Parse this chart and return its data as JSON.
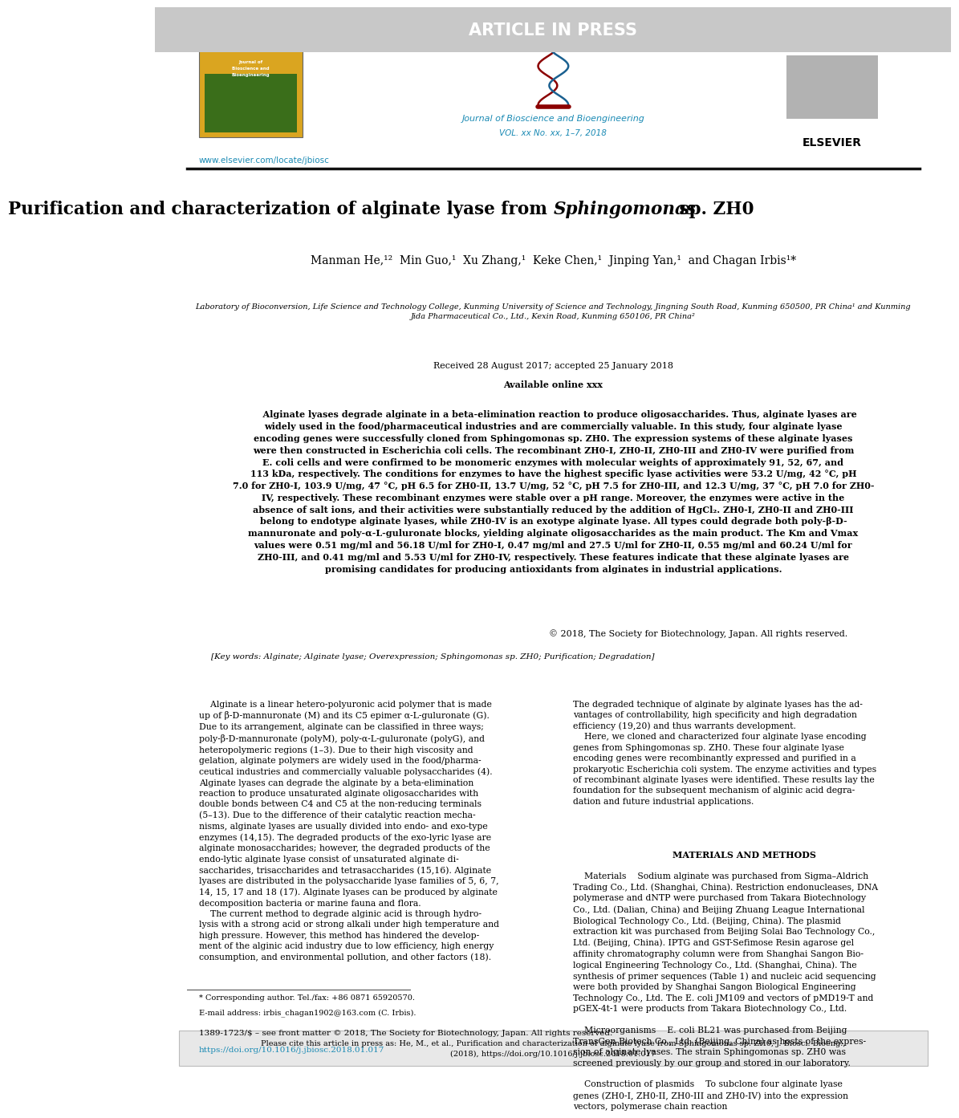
{
  "background_color": "#ffffff",
  "header_bar_color": "#c8c8c8",
  "header_bar_text": "ARTICLE IN PRESS",
  "header_bar_text_color": "#ffffff",
  "journal_name": "Journal of Bioscience and Bioengineering",
  "journal_volume": "VOL. xx No. xx, 1–7, 2018",
  "journal_name_color": "#1a8ab4",
  "url_text": "www.elsevier.com/locate/jbiosc",
  "url_color": "#1a8ab4",
  "title_text": "Purification and characterization of alginate lyase from Sphingomonas sp. ZH0",
  "authors_text": "Manman He,¹²  Min Guo,¹  Xu Zhang,¹  Keke Chen,¹  Jinping Yan,¹  and Chagan Irbis¹*",
  "affiliation_text": "Laboratory of Bioconversion, Life Science and Technology College, Kunming University of Science and Technology, Jingning South Road, Kunming 650500, PR China¹ and Kunming\nJida Pharmaceutical Co., Ltd., Kexin Road, Kunming 650106, PR China²",
  "received_text": "Received 28 August 2017; accepted 25 January 2018",
  "available_text": "Available online xxx",
  "abstract_text": "    Alginate lyases degrade alginate in a beta-elimination reaction to produce oligosaccharides. Thus, alginate lyases are\nwidely used in the food/pharmaceutical industries and are commercially valuable. In this study, four alginate lyase\nencoding genes were successfully cloned from Sphingomonas sp. ZH0. The expression systems of these alginate lyases\nwere then constructed in Escherichia coli cells. The recombinant ZH0-I, ZH0-II, ZH0-III and ZH0-IV were purified from\nE. coli cells and were confirmed to be monomeric enzymes with molecular weights of approximately 91, 52, 67, and\n113 kDa, respectively. The conditions for enzymes to have the highest specific lyase activities were 53.2 U/mg, 42 °C, pH\n7.0 for ZH0-I, 103.9 U/mg, 47 °C, pH 6.5 for ZH0-II, 13.7 U/mg, 52 °C, pH 7.5 for ZH0-III, and 12.3 U/mg, 37 °C, pH 7.0 for ZH0-\nIV, respectively. These recombinant enzymes were stable over a pH range. Moreover, the enzymes were active in the\nabsence of salt ions, and their activities were substantially reduced by the addition of HgCl₂. ZH0-I, ZH0-II and ZH0-III\nbelong to endotype alginate lyases, while ZH0-IV is an exotype alginate lyase. All types could degrade both poly-β-D-\nmannuronate and poly-α-L-guluronate blocks, yielding alginate oligosaccharides as the main product. The Km and Vmax\nvalues were 0.51 mg/ml and 56.18 U/ml for ZH0-I, 0.47 mg/ml and 27.5 U/ml for ZH0-II, 0.55 mg/ml and 60.24 U/ml for\nZH0-III, and 0.41 mg/ml and 5.53 U/ml for ZH0-IV, respectively. These features indicate that these alginate lyases are\npromising candidates for producing antioxidants from alginates in industrial applications.",
  "copyright_text": "© 2018, The Society for Biotechnology, Japan. All rights reserved.",
  "keywords_text": "[Key words: Alginate; Alginate lyase; Overexpression; Sphingomonas sp. ZH0; Purification; Degradation]",
  "col1_text": "    Alginate is a linear hetero-polyuronic acid polymer that is made\nup of β-D-mannuronate (M) and its C5 epimer α-L-guluronate (G).\nDue to its arrangement, alginate can be classified in three ways;\npoly-β-D-mannuronate (polyM), poly-α-L-guluronate (polyG), and\nheteropolymeric regions (1–3). Due to their high viscosity and\ngelation, alginate polymers are widely used in the food/pharma-\nceutical industries and commercially valuable polysaccharides (4).\nAlginate lyases can degrade the alginate by a beta-elimination\nreaction to produce unsaturated alginate oligosaccharides with\ndouble bonds between C4 and C5 at the non-reducing terminals\n(5–13). Due to the difference of their catalytic reaction mecha-\nnisms, alginate lyases are usually divided into endo- and exo-type\nenzymes (14,15). The degraded products of the exo-lyric lyase are\nalginate monosaccharides; however, the degraded products of the\nendo-lytic alginate lyase consist of unsaturated alginate di-\nsaccharides, trisaccharides and tetrasaccharides (15,16). Alginate\nlyases are distributed in the polysaccharide lyase families of 5, 6, 7,\n14, 15, 17 and 18 (17). Alginate lyases can be produced by alginate\ndecomposition bacteria or marine fauna and flora.\n    The current method to degrade alginic acid is through hydro-\nlysis with a strong acid or strong alkali under high temperature and\nhigh pressure. However, this method has hindered the develop-\nment of the alginic acid industry due to low efficiency, high energy\nconsumption, and environmental pollution, and other factors (18).",
  "col2_text": "The degraded technique of alginate by alginate lyases has the ad-\nvantages of controllability, high specificity and high degradation\nefficiency (19,20) and thus warrants development.\n    Here, we cloned and characterized four alginate lyase encoding\ngenes from Sphingomonas sp. ZH0. These four alginate lyase\nencoding genes were recombinantly expressed and purified in a\nprokaryotic Escherichia coli system. The enzyme activities and types\nof recombinant alginate lyases were identified. These results lay the\nfoundation for the subsequent mechanism of alginic acid degra-\ndation and future industrial applications.",
  "mm_title": "MATERIALS AND METHODS",
  "col2_materials": "    Materials    Sodium alginate was purchased from Sigma–Aldrich\nTrading Co., Ltd. (Shanghai, China). Restriction endonucleases, DNA\npolymerase and dNTP were purchased from Takara Biotechnology\nCo., Ltd. (Dalian, China) and Beijing Zhuang League International\nBiological Technology Co., Ltd. (Beijing, China). The plasmid\nextraction kit was purchased from Beijing Solai Bao Technology Co.,\nLtd. (Beijing, China). IPTG and GST-Sefimose Resin agarose gel\naffinity chromatography column were from Shanghai Sangon Bio-\nlogical Engineering Technology Co., Ltd. (Shanghai, China). The\nsynthesis of primer sequences (Table 1) and nucleic acid sequencing\nwere both provided by Shanghai Sangon Biological Engineering\nTechnology Co., Ltd. The E. coli JM109 and vectors of pMD19-T and\npGEX-4t-1 were products from Takara Biotechnology Co., Ltd.\n\n    Microorganisms    E. coli BL21 was purchased from Beijing\nTransGen Biotech Co., Ltd. (Beijing, China) as hosts of the expres-\nsion of alginate lyases. The strain Sphingomonas sp. ZH0 was\nscreened previously by our group and stored in our laboratory.\n\n    Construction of plasmids    To subclone four alginate lyase\ngenes (ZH0-I, ZH0-II, ZH0-III and ZH0-IV) into the expression\nvectors, polymerase chain reaction",
  "footnote_line1": "* Corresponding author. Tel./fax: +86 0871 65920570.",
  "footnote_line2": "E-mail address: irbis_chagan1902@163.com (C. Irbis).",
  "footer_line1": "1389-1723/$ – see front matter © 2018, The Society for Biotechnology, Japan. All rights reserved.",
  "footer_line2": "https://doi.org/10.1016/j.jbiosc.2018.01.017",
  "footer_line2_color": "#1a8ab4",
  "cite_box_text": "Please cite this article in press as: He, M., et al., Purification and characterization of alginate lyase from Sphingomonas sp. ZH0, J. Biosci. Bioeng.,\n(2018), https://doi.org/10.1016/j.jbiosc.2018.01.017",
  "cite_box_bg": "#e8e8e8"
}
